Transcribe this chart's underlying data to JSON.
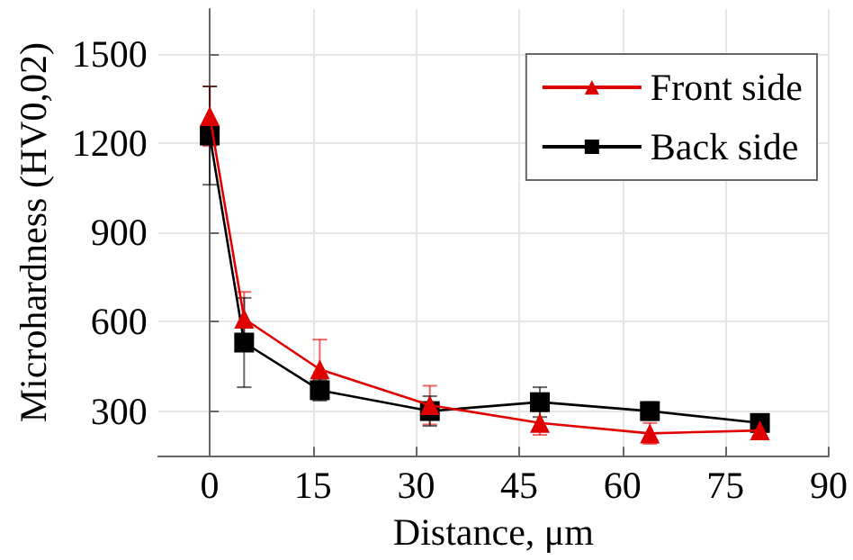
{
  "chart_data": {
    "type": "line",
    "xlabel": "Distance, μm",
    "ylabel": "Microhardness (HV0,02)",
    "x": [
      0,
      5,
      16,
      32,
      48,
      64,
      80
    ],
    "series": [
      {
        "name": "Front side",
        "color": "#e00000",
        "marker": "triangle",
        "values": [
          1290,
          610,
          440,
          320,
          260,
          225,
          235
        ],
        "errors": [
          100,
          90,
          100,
          65,
          40,
          35,
          20
        ]
      },
      {
        "name": "Back side",
        "color": "#000000",
        "marker": "square",
        "values": [
          1225,
          530,
          370,
          300,
          330,
          300,
          260
        ],
        "errors": [
          165,
          150,
          35,
          50,
          50,
          30,
          20
        ]
      }
    ],
    "xlim": [
      -7.5,
      90
    ],
    "xticks": [
      0,
      15,
      30,
      45,
      60,
      75,
      90
    ],
    "ylim": [
      150,
      1650
    ],
    "yticks": [
      300,
      600,
      900,
      1200,
      1500
    ],
    "grid": true,
    "legend": "top right",
    "line_style": "solid"
  }
}
